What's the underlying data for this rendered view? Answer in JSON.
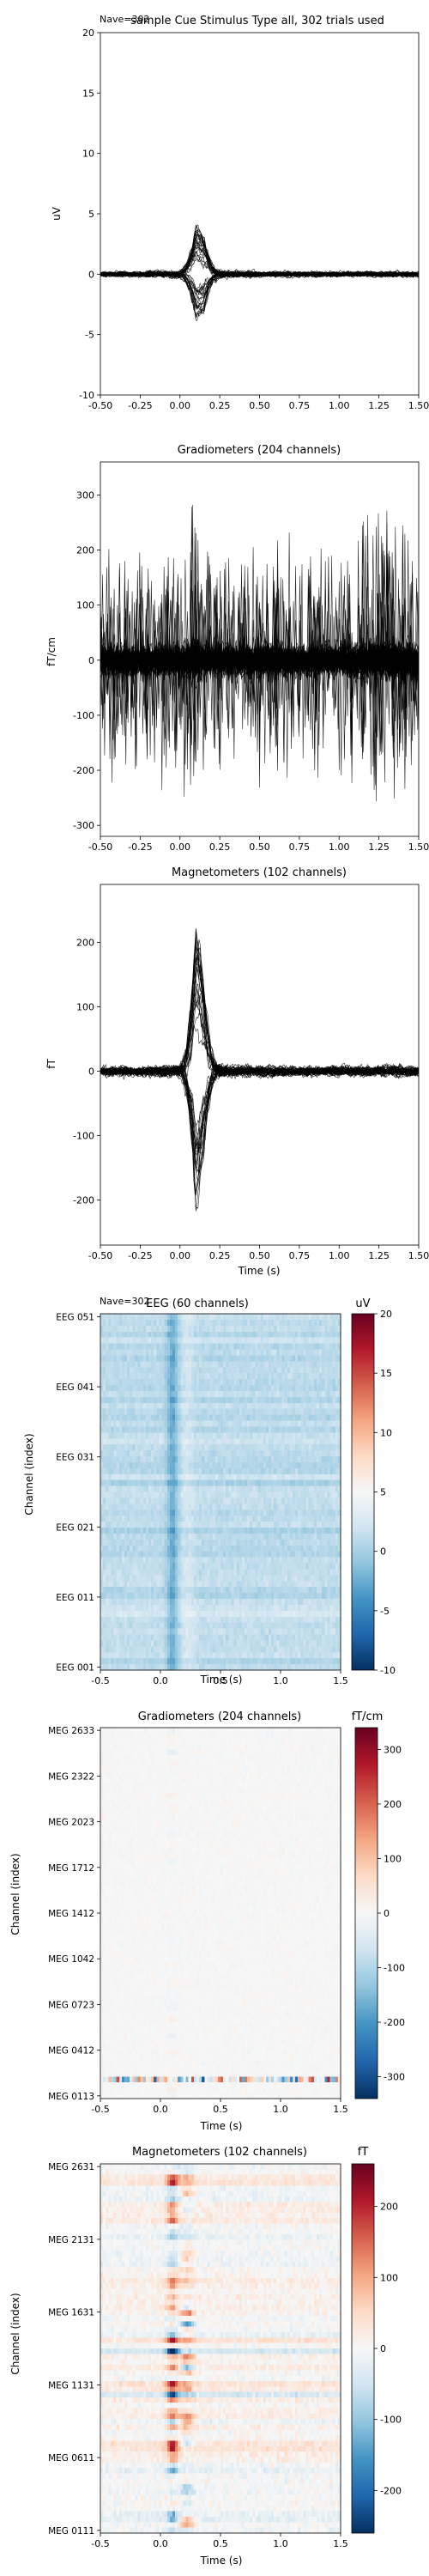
{
  "chart_data": [
    {
      "type": "line",
      "title": "sample Cue Stimulus Type all, 302 trials used",
      "overlay_label": "Nave=302",
      "xlabel": "",
      "ylabel": "uV",
      "xlim": [
        -0.5,
        1.5
      ],
      "ylim": [
        -10,
        20
      ],
      "xticks": [
        "-0.50",
        "-0.25",
        "0.00",
        "0.25",
        "0.50",
        "0.75",
        "1.00",
        "1.25",
        "1.50"
      ],
      "yticks": [
        "-10",
        "-5",
        "0",
        "5",
        "10",
        "15",
        "20"
      ],
      "n_traces": 60,
      "x": [
        -0.5,
        -0.25,
        0.0,
        0.05,
        0.1,
        0.15,
        0.2,
        0.25,
        0.3,
        0.5,
        0.75,
        1.0,
        1.25,
        1.5
      ],
      "envelope_max": [
        1.5,
        1.5,
        2.0,
        3.0,
        4.6,
        3.2,
        2.2,
        2.0,
        1.8,
        1.6,
        1.5,
        1.5,
        1.5,
        1.5
      ],
      "envelope_min": [
        -1.5,
        -1.5,
        -2.0,
        -3.0,
        -3.8,
        -4.2,
        -3.0,
        -2.2,
        -2.0,
        -1.6,
        -1.5,
        -1.5,
        -1.5,
        -1.5
      ],
      "color": "#000000"
    },
    {
      "type": "line",
      "title": "Gradiometers (204 channels)",
      "xlabel": "",
      "ylabel": "fT/cm",
      "xlim": [
        -0.5,
        1.5
      ],
      "ylim": [
        -320,
        360
      ],
      "xticks": [
        "-0.50",
        "-0.25",
        "0.00",
        "0.25",
        "0.50",
        "0.75",
        "1.00",
        "1.25",
        "1.50"
      ],
      "yticks": [
        "-300",
        "-200",
        "-100",
        "0",
        "100",
        "200",
        "300"
      ],
      "n_traces": 204,
      "x": [
        -0.5,
        -0.25,
        0.0,
        0.05,
        0.1,
        0.15,
        0.2,
        0.25,
        0.3,
        0.5,
        0.75,
        1.0,
        1.25,
        1.5
      ],
      "envelope_max": [
        240,
        220,
        250,
        300,
        340,
        260,
        220,
        230,
        240,
        260,
        240,
        250,
        300,
        250
      ],
      "envelope_min": [
        -230,
        -240,
        -250,
        -300,
        -310,
        -260,
        -230,
        -240,
        -250,
        -260,
        -240,
        -250,
        -310,
        -260
      ],
      "color": "#000000"
    },
    {
      "type": "line",
      "title": "Magnetometers (102 channels)",
      "xlabel": "Time (s)",
      "ylabel": "fT",
      "xlim": [
        -0.5,
        1.5
      ],
      "ylim": [
        -270,
        290
      ],
      "xticks": [
        "-0.50",
        "-0.25",
        "0.00",
        "0.25",
        "0.50",
        "0.75",
        "1.00",
        "1.25",
        "1.50"
      ],
      "yticks": [
        "-200",
        "-100",
        "0",
        "100",
        "200"
      ],
      "n_traces": 102,
      "x": [
        -0.5,
        -0.25,
        0.0,
        0.05,
        0.1,
        0.15,
        0.2,
        0.25,
        0.3,
        0.5,
        0.75,
        1.0,
        1.25,
        1.5
      ],
      "envelope_max": [
        50,
        50,
        60,
        150,
        265,
        160,
        90,
        70,
        60,
        55,
        50,
        50,
        55,
        50
      ],
      "envelope_min": [
        -50,
        -50,
        -60,
        -150,
        -235,
        -180,
        -100,
        -70,
        -60,
        -55,
        -50,
        -50,
        -55,
        -50
      ],
      "color": "#000000"
    },
    {
      "type": "heatmap",
      "title": "EEG (60 channels)",
      "overlay_label": "Nave=302",
      "xlabel": "Time (s)",
      "ylabel": "Channel (index)",
      "xlim": [
        -0.5,
        1.5
      ],
      "xticks": [
        "-0.5",
        "0.0",
        "0.5",
        "1.0",
        "1.5"
      ],
      "yticks": [
        "EEG 001",
        "EEG 011",
        "EEG 021",
        "EEG 031",
        "EEG 041",
        "EEG 051"
      ],
      "n_rows": 60,
      "colorbar_label": "uV",
      "colorbar_ticks": [
        "-10",
        "-5",
        "0",
        "5",
        "10",
        "15",
        "20"
      ],
      "vlim": [
        -10,
        20
      ],
      "colormap": "RdBu_r"
    },
    {
      "type": "heatmap",
      "title": "Gradiometers (204 channels)",
      "xlabel": "Time (s)",
      "ylabel": "Channel (index)",
      "xlim": [
        -0.5,
        1.5
      ],
      "xticks": [
        "-0.5",
        "0.0",
        "0.5",
        "1.0",
        "1.5"
      ],
      "yticks": [
        "MEG 0113",
        "MEG 0412",
        "MEG 0723",
        "MEG 1042",
        "MEG 1412",
        "MEG 1712",
        "MEG 2023",
        "MEG 2322",
        "MEG 2633"
      ],
      "n_rows": 204,
      "colorbar_label": "fT/cm",
      "colorbar_ticks": [
        "-300",
        "-200",
        "-100",
        "0",
        "100",
        "200",
        "300"
      ],
      "vlim": [
        -340,
        340
      ],
      "colormap": "RdBu_r"
    },
    {
      "type": "heatmap",
      "title": "Magnetometers (102 channels)",
      "xlabel": "Time (s)",
      "ylabel": "Channel (index)",
      "xlim": [
        -0.5,
        1.5
      ],
      "xticks": [
        "-0.5",
        "0.0",
        "0.5",
        "1.0",
        "1.5"
      ],
      "yticks": [
        "MEG 0111",
        "MEG 0611",
        "MEG 1131",
        "MEG 1631",
        "MEG 2131",
        "MEG 2631"
      ],
      "n_rows": 102,
      "colorbar_label": "fT",
      "colorbar_ticks": [
        "-200",
        "-100",
        "0",
        "100",
        "200"
      ],
      "vlim": [
        -260,
        260
      ],
      "colormap": "RdBu_r"
    }
  ]
}
